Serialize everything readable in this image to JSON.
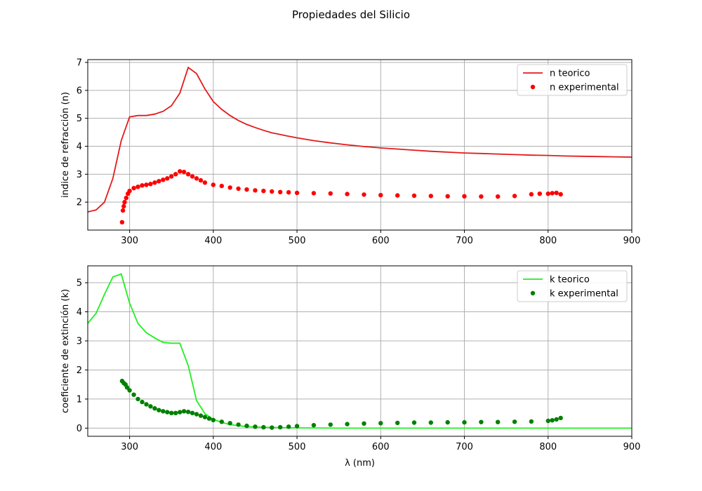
{
  "figure": {
    "suptitle": "Propiedades del Silicio"
  },
  "colors": {
    "n_teorico": "#e41a1a",
    "n_experimental": "#ff0000",
    "k_teorico": "#22ee22",
    "k_experimental": "#008000",
    "grid": "#b0b0b0"
  },
  "chart_data": [
    {
      "type": "line",
      "title": "",
      "xlabel": "",
      "ylabel": "indice de refracción (n)",
      "xlim": [
        250,
        900
      ],
      "ylim": [
        1.0,
        7.1
      ],
      "xticks": [
        300,
        400,
        500,
        600,
        700,
        800,
        900
      ],
      "yticks": [
        2,
        3,
        4,
        5,
        6,
        7
      ],
      "grid": true,
      "legend": "top-right",
      "series": [
        {
          "name": "n teorico",
          "kind": "line",
          "x": [
            250,
            260,
            270,
            280,
            290,
            300,
            310,
            320,
            330,
            340,
            350,
            360,
            370,
            380,
            390,
            400,
            410,
            420,
            430,
            440,
            450,
            460,
            470,
            480,
            490,
            500,
            520,
            540,
            560,
            580,
            600,
            620,
            640,
            660,
            680,
            700,
            720,
            740,
            760,
            780,
            800,
            820,
            840,
            860,
            880,
            900
          ],
          "y": [
            1.65,
            1.72,
            2.0,
            2.85,
            4.2,
            5.05,
            5.1,
            5.1,
            5.15,
            5.25,
            5.45,
            5.9,
            6.82,
            6.6,
            6.05,
            5.6,
            5.32,
            5.1,
            4.92,
            4.78,
            4.67,
            4.57,
            4.48,
            4.42,
            4.36,
            4.3,
            4.2,
            4.12,
            4.05,
            3.99,
            3.94,
            3.9,
            3.86,
            3.82,
            3.79,
            3.76,
            3.74,
            3.72,
            3.7,
            3.68,
            3.67,
            3.65,
            3.64,
            3.63,
            3.62,
            3.61
          ]
        },
        {
          "name": "n experimental",
          "kind": "scatter",
          "x": [
            291,
            292,
            293,
            294,
            296,
            298,
            300,
            305,
            310,
            315,
            320,
            325,
            330,
            335,
            340,
            345,
            350,
            355,
            360,
            365,
            370,
            375,
            380,
            385,
            390,
            400,
            410,
            420,
            430,
            440,
            450,
            460,
            470,
            480,
            490,
            500,
            520,
            540,
            560,
            580,
            600,
            620,
            640,
            660,
            680,
            700,
            720,
            740,
            760,
            780,
            790,
            800,
            805,
            810,
            815
          ],
          "y": [
            1.28,
            1.7,
            1.85,
            2.0,
            2.15,
            2.3,
            2.4,
            2.5,
            2.55,
            2.6,
            2.62,
            2.65,
            2.7,
            2.75,
            2.8,
            2.85,
            2.92,
            3.0,
            3.1,
            3.08,
            3.0,
            2.92,
            2.85,
            2.78,
            2.7,
            2.62,
            2.58,
            2.52,
            2.48,
            2.45,
            2.42,
            2.4,
            2.38,
            2.36,
            2.35,
            2.33,
            2.32,
            2.31,
            2.29,
            2.27,
            2.25,
            2.24,
            2.23,
            2.22,
            2.21,
            2.21,
            2.2,
            2.2,
            2.22,
            2.28,
            2.3,
            2.3,
            2.32,
            2.33,
            2.28
          ]
        }
      ]
    },
    {
      "type": "line",
      "title": "",
      "xlabel": "λ (nm)",
      "ylabel": "coeficiente de extinción (k)",
      "xlim": [
        250,
        900
      ],
      "ylim": [
        -0.28,
        5.58
      ],
      "xticks": [
        300,
        400,
        500,
        600,
        700,
        800,
        900
      ],
      "yticks": [
        0,
        1,
        2,
        3,
        4,
        5
      ],
      "grid": true,
      "legend": "top-right",
      "series": [
        {
          "name": "k teorico",
          "kind": "line",
          "x": [
            250,
            260,
            270,
            280,
            290,
            300,
            310,
            320,
            330,
            340,
            350,
            360,
            370,
            380,
            390,
            400,
            410,
            420,
            440,
            460,
            480,
            500,
            550,
            600,
            650,
            700,
            750,
            800,
            850,
            900
          ],
          "y": [
            3.6,
            3.95,
            4.6,
            5.2,
            5.3,
            4.3,
            3.6,
            3.28,
            3.1,
            2.95,
            2.92,
            2.92,
            2.15,
            0.95,
            0.5,
            0.3,
            0.2,
            0.12,
            0.05,
            0.03,
            0.02,
            0.01,
            0.0,
            0.0,
            0.0,
            0.0,
            0.0,
            0.0,
            0.0,
            0.0
          ]
        },
        {
          "name": "k experimental",
          "kind": "scatter",
          "x": [
            291,
            293,
            295,
            297,
            300,
            305,
            310,
            315,
            320,
            325,
            330,
            335,
            340,
            345,
            350,
            355,
            360,
            365,
            370,
            375,
            380,
            385,
            390,
            395,
            400,
            410,
            420,
            430,
            440,
            450,
            460,
            470,
            480,
            490,
            500,
            520,
            540,
            560,
            580,
            600,
            620,
            640,
            660,
            680,
            700,
            720,
            740,
            760,
            780,
            800,
            805,
            810,
            815
          ],
          "y": [
            1.62,
            1.55,
            1.5,
            1.4,
            1.3,
            1.15,
            1.0,
            0.9,
            0.82,
            0.75,
            0.68,
            0.62,
            0.58,
            0.55,
            0.52,
            0.52,
            0.55,
            0.58,
            0.56,
            0.52,
            0.48,
            0.43,
            0.38,
            0.33,
            0.28,
            0.22,
            0.17,
            0.12,
            0.08,
            0.05,
            0.03,
            0.02,
            0.03,
            0.05,
            0.07,
            0.1,
            0.12,
            0.14,
            0.16,
            0.17,
            0.18,
            0.19,
            0.19,
            0.2,
            0.2,
            0.21,
            0.21,
            0.22,
            0.23,
            0.25,
            0.27,
            0.3,
            0.35
          ]
        }
      ]
    }
  ]
}
